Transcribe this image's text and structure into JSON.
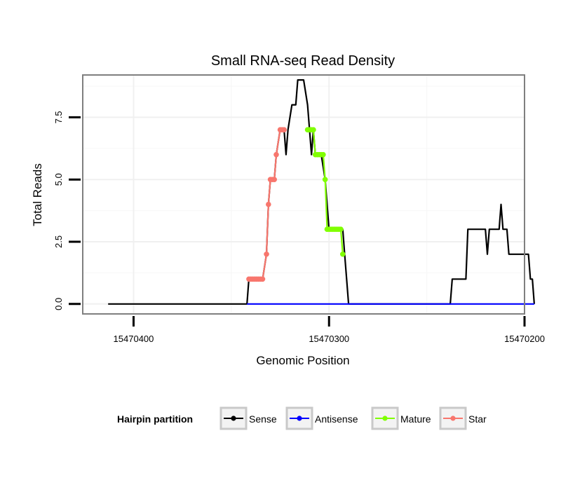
{
  "chart_data": {
    "type": "line",
    "title": "Small RNA-seq Read Density",
    "xlabel": "Genomic Position",
    "ylabel": "Total Reads",
    "x_reversed": true,
    "xlim": [
      15470200,
      15470426
    ],
    "ylim": [
      -0.4,
      9.2
    ],
    "xticks": [
      15470400,
      15470300,
      15470200
    ],
    "xtick_labels": [
      "15470400",
      "15470300",
      "15470200"
    ],
    "yticks": [
      0,
      2.5,
      5,
      7.5
    ],
    "ytick_labels": [
      "0.0",
      "2.5",
      "5.0",
      "7.5"
    ],
    "grid": true,
    "legend_title": "Hairpin partition",
    "legend_position": "bottom",
    "series": [
      {
        "name": "Sense",
        "color": "#000000",
        "marker": false,
        "points": [
          [
            15470413,
            0
          ],
          [
            15470342,
            0
          ],
          [
            15470341,
            1
          ],
          [
            15470338,
            1
          ],
          [
            15470334,
            1
          ],
          [
            15470332,
            2
          ],
          [
            15470331,
            4
          ],
          [
            15470330,
            5
          ],
          [
            15470328,
            5
          ],
          [
            15470327,
            6
          ],
          [
            15470325,
            7
          ],
          [
            15470323,
            7
          ],
          [
            15470322,
            6
          ],
          [
            15470321,
            7
          ],
          [
            15470319,
            8
          ],
          [
            15470317,
            8
          ],
          [
            15470316,
            9
          ],
          [
            15470313,
            9
          ],
          [
            15470311,
            8
          ],
          [
            15470310,
            7
          ],
          [
            15470309,
            6
          ],
          [
            15470308,
            7
          ],
          [
            15470307,
            6
          ],
          [
            15470304,
            6
          ],
          [
            15470302,
            5
          ],
          [
            15470300,
            3
          ],
          [
            15470298,
            3
          ],
          [
            15470293,
            3
          ],
          [
            15470292,
            2
          ],
          [
            15470291,
            1
          ],
          [
            15470290,
            0
          ],
          [
            15470238,
            0
          ],
          [
            15470237,
            1
          ],
          [
            15470230,
            1
          ],
          [
            15470229,
            3
          ],
          [
            15470220,
            3
          ],
          [
            15470219,
            2
          ],
          [
            15470218,
            3
          ],
          [
            15470213,
            3
          ],
          [
            15470212,
            4
          ],
          [
            15470211,
            3
          ],
          [
            15470209,
            3
          ],
          [
            15470208,
            2
          ],
          [
            15470198,
            2
          ],
          [
            15470197,
            1
          ],
          [
            15470196,
            1
          ],
          [
            15470195,
            0
          ]
        ]
      },
      {
        "name": "Antisense",
        "color": "#0000ff",
        "marker": false,
        "points": [
          [
            15470342,
            0
          ],
          [
            15470195,
            0
          ]
        ]
      },
      {
        "name": "Mature",
        "color": "#80ff00",
        "marker": true,
        "points": [
          [
            15470311,
            7
          ],
          [
            15470310,
            7
          ],
          [
            15470309,
            7
          ],
          [
            15470308,
            7
          ],
          [
            15470307,
            6
          ],
          [
            15470306,
            6
          ],
          [
            15470305,
            6
          ],
          [
            15470304,
            6
          ],
          [
            15470303,
            6
          ],
          [
            15470302,
            5
          ],
          [
            15470301,
            3
          ],
          [
            15470300,
            3
          ],
          [
            15470299,
            3
          ],
          [
            15470298,
            3
          ],
          [
            15470297,
            3
          ],
          [
            15470296,
            3
          ],
          [
            15470295,
            3
          ],
          [
            15470294,
            3
          ],
          [
            15470293,
            2
          ]
        ]
      },
      {
        "name": "Star",
        "color": "#f8766d",
        "marker": true,
        "points": [
          [
            15470341,
            1
          ],
          [
            15470340,
            1
          ],
          [
            15470339,
            1
          ],
          [
            15470338,
            1
          ],
          [
            15470337,
            1
          ],
          [
            15470336,
            1
          ],
          [
            15470335,
            1
          ],
          [
            15470334,
            1
          ],
          [
            15470332,
            2
          ],
          [
            15470331,
            4
          ],
          [
            15470330,
            5
          ],
          [
            15470329,
            5
          ],
          [
            15470328,
            5
          ],
          [
            15470327,
            6
          ],
          [
            15470325,
            7
          ],
          [
            15470324,
            7
          ],
          [
            15470323,
            7
          ]
        ]
      }
    ]
  }
}
